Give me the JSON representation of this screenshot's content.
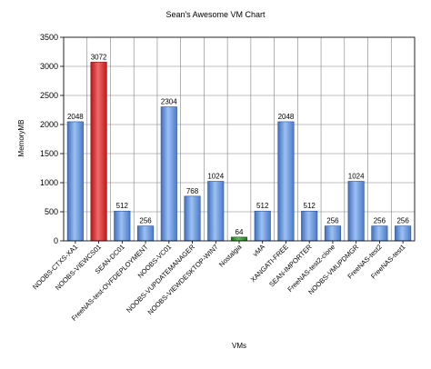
{
  "chart_data": {
    "type": "bar",
    "title": "Sean's Awesome VM Chart",
    "xlabel": "VMs",
    "ylabel": "MemoryMB",
    "ylim": [
      0,
      3500
    ],
    "yticks": [
      0,
      500,
      1000,
      1500,
      2000,
      2500,
      3000,
      3500
    ],
    "grid": true,
    "legend": "none",
    "categories": [
      "NOOBS-CTXS-XA1",
      "NOOBS-VIEWCS01",
      "SEAN-DC01",
      "FreeNAS-test-OVFDEPLOYMENT",
      "NOOBS-VC01",
      "NOOBS-VUPDATEMANAGER",
      "NOOBS-VIEWDESKTOP-WIN7",
      "Nostalgia",
      "vMA",
      "XANGATI-FREE",
      "SEAN-IMPORTER",
      "FreeNAS-test2-clone",
      "NOOBS-VMUPDMGR",
      "FreeNAS-test2",
      "FreeNAS-test1"
    ],
    "values": [
      2048,
      3072,
      512,
      256,
      2304,
      768,
      1024,
      64,
      512,
      2048,
      512,
      256,
      1024,
      256,
      256
    ],
    "data_labels": [
      "2048",
      "3072",
      "512",
      "256",
      "2304",
      "768",
      "1024",
      "64",
      "512",
      "2048",
      "512",
      "256",
      "1024",
      "256",
      "256"
    ],
    "bar_colors": [
      "#5a8bd6",
      "#d42a2a",
      "#5a8bd6",
      "#5a8bd6",
      "#5a8bd6",
      "#5a8bd6",
      "#5a8bd6",
      "#2e8b2e",
      "#5a8bd6",
      "#5a8bd6",
      "#5a8bd6",
      "#5a8bd6",
      "#5a8bd6",
      "#5a8bd6",
      "#5a8bd6"
    ]
  }
}
